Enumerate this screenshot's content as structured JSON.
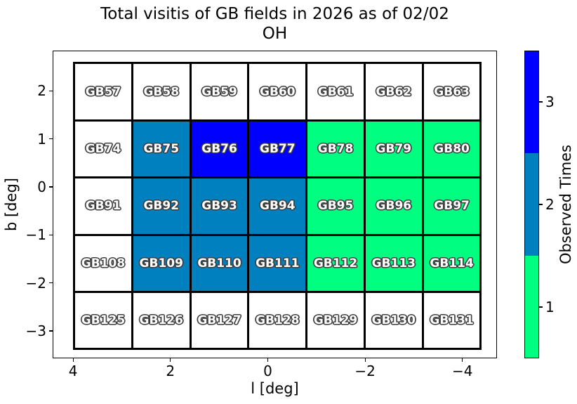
{
  "title": {
    "line1": "Total visitis of GB fields in 2026 as of 02/02",
    "line2": "OH"
  },
  "axes": {
    "xlabel": "l [deg]",
    "ylabel": "b [deg]",
    "xlim": [
      4.42,
      -4.71
    ],
    "ylim": [
      2.84,
      -3.57
    ],
    "x_ticks": [
      {
        "value": 4,
        "label": "4"
      },
      {
        "value": 2,
        "label": "2"
      },
      {
        "value": 0,
        "label": "0"
      },
      {
        "value": -2,
        "label": "−2"
      },
      {
        "value": -4,
        "label": "−4"
      }
    ],
    "y_ticks": [
      {
        "value": 2,
        "label": "2"
      },
      {
        "value": 1,
        "label": "1"
      },
      {
        "value": 0,
        "label": "0"
      },
      {
        "value": -1,
        "label": "−1"
      },
      {
        "value": -2,
        "label": "−2"
      },
      {
        "value": -3,
        "label": "−3"
      }
    ]
  },
  "colorbar": {
    "label": "Observed Times",
    "ticks": [
      {
        "value": 3,
        "label": "3"
      },
      {
        "value": 2,
        "label": "2"
      },
      {
        "value": 1,
        "label": "1"
      }
    ],
    "levels_top_to_bottom": [
      {
        "value": 3,
        "color": "#0000ff"
      },
      {
        "value": 2,
        "color": "#0080bf"
      },
      {
        "value": 1,
        "color": "#00ff80"
      }
    ]
  },
  "chart_data": {
    "type": "heatmap",
    "title": "Total visitis of GB fields in 2026 as of 02/02 — OH",
    "xlabel": "l [deg]",
    "ylabel": "b [deg]",
    "x_axis_inverted": true,
    "grid": {
      "l_edges": [
        4.0,
        2.8,
        1.6,
        0.4,
        -0.8,
        -2.0,
        -3.2,
        -4.4
      ],
      "b_edges": [
        2.6,
        1.4,
        0.2,
        -1.0,
        -2.2,
        -3.4
      ],
      "cell_size_deg": 1.2
    },
    "value_colors": {
      "0": "#ffffff",
      "1": "#00ff80",
      "2": "#0080bf",
      "3": "#0000ff"
    },
    "unobserved_value": 0,
    "rows": [
      {
        "b_center": 2.0,
        "cells": [
          {
            "label": "GB57",
            "visits": 0
          },
          {
            "label": "GB58",
            "visits": 0
          },
          {
            "label": "GB59",
            "visits": 0
          },
          {
            "label": "GB60",
            "visits": 0
          },
          {
            "label": "GB61",
            "visits": 0
          },
          {
            "label": "GB62",
            "visits": 0
          },
          {
            "label": "GB63",
            "visits": 0
          }
        ]
      },
      {
        "b_center": 0.8,
        "cells": [
          {
            "label": "GB74",
            "visits": 0
          },
          {
            "label": "GB75",
            "visits": 2
          },
          {
            "label": "GB76",
            "visits": 3
          },
          {
            "label": "GB77",
            "visits": 3
          },
          {
            "label": "GB78",
            "visits": 1
          },
          {
            "label": "GB79",
            "visits": 1
          },
          {
            "label": "GB80",
            "visits": 1
          }
        ]
      },
      {
        "b_center": -0.4,
        "cells": [
          {
            "label": "GB91",
            "visits": 0
          },
          {
            "label": "GB92",
            "visits": 2
          },
          {
            "label": "GB93",
            "visits": 2
          },
          {
            "label": "GB94",
            "visits": 2
          },
          {
            "label": "GB95",
            "visits": 1
          },
          {
            "label": "GB96",
            "visits": 1
          },
          {
            "label": "GB97",
            "visits": 1
          }
        ]
      },
      {
        "b_center": -1.6,
        "cells": [
          {
            "label": "GB108",
            "visits": 0
          },
          {
            "label": "GB109",
            "visits": 2
          },
          {
            "label": "GB110",
            "visits": 2
          },
          {
            "label": "GB111",
            "visits": 2
          },
          {
            "label": "GB112",
            "visits": 1
          },
          {
            "label": "GB113",
            "visits": 1
          },
          {
            "label": "GB114",
            "visits": 1
          }
        ]
      },
      {
        "b_center": -2.8,
        "cells": [
          {
            "label": "GB125",
            "visits": 0
          },
          {
            "label": "GB126",
            "visits": 0
          },
          {
            "label": "GB127",
            "visits": 0
          },
          {
            "label": "GB128",
            "visits": 0
          },
          {
            "label": "GB129",
            "visits": 0
          },
          {
            "label": "GB130",
            "visits": 0
          },
          {
            "label": "GB131",
            "visits": 0
          }
        ]
      }
    ]
  }
}
